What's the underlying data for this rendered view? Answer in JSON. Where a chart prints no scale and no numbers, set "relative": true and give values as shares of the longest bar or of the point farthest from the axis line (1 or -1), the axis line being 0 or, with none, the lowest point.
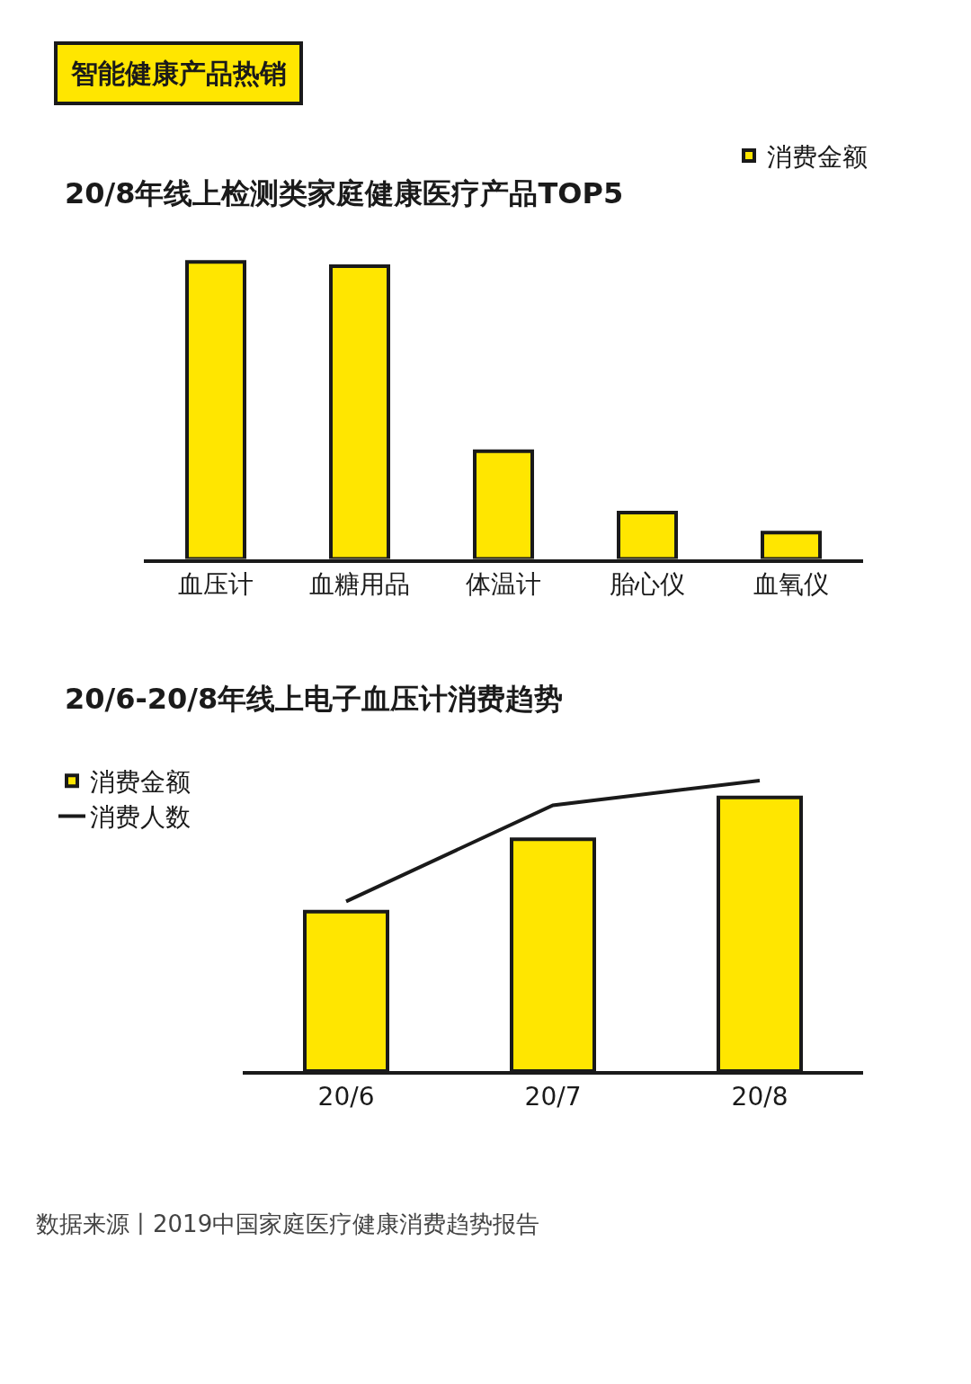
{
  "chart_data": [
    {
      "type": "bar",
      "title": "20/8年线上检测类家庭健康医疗产品TOP5",
      "annotations": [
        "智能健康产品热销"
      ],
      "relative": true,
      "legend": "top right",
      "categories": [
        "血压计",
        "血糖用品",
        "体温计",
        "胎心仪",
        "血氧仪"
      ],
      "series": [
        {
          "name": "消费金额",
          "color": "#ffe600",
          "values": [
            1,
            0.986,
            0.363,
            0.156,
            0.089
          ]
        }
      ]
    },
    {
      "type": "bar",
      "title": "20/6-20/8年线上电子血压计消费趋势",
      "annotations": [
        "数据来源丨2019中国家庭医疗健康消费趋势报告"
      ],
      "relative": true,
      "legend": "top left",
      "categories": [
        "20/6",
        "20/7",
        "20/8"
      ],
      "series": [
        {
          "name": "消费金额",
          "color": "#ffe600",
          "values": [
            0.549,
            0.798,
            0.942
          ]
        },
        {
          "name": "消费人数",
          "type": "line",
          "color": "#1a1a1a",
          "values": [
            0.584,
            0.915,
            1
          ]
        }
      ]
    }
  ]
}
